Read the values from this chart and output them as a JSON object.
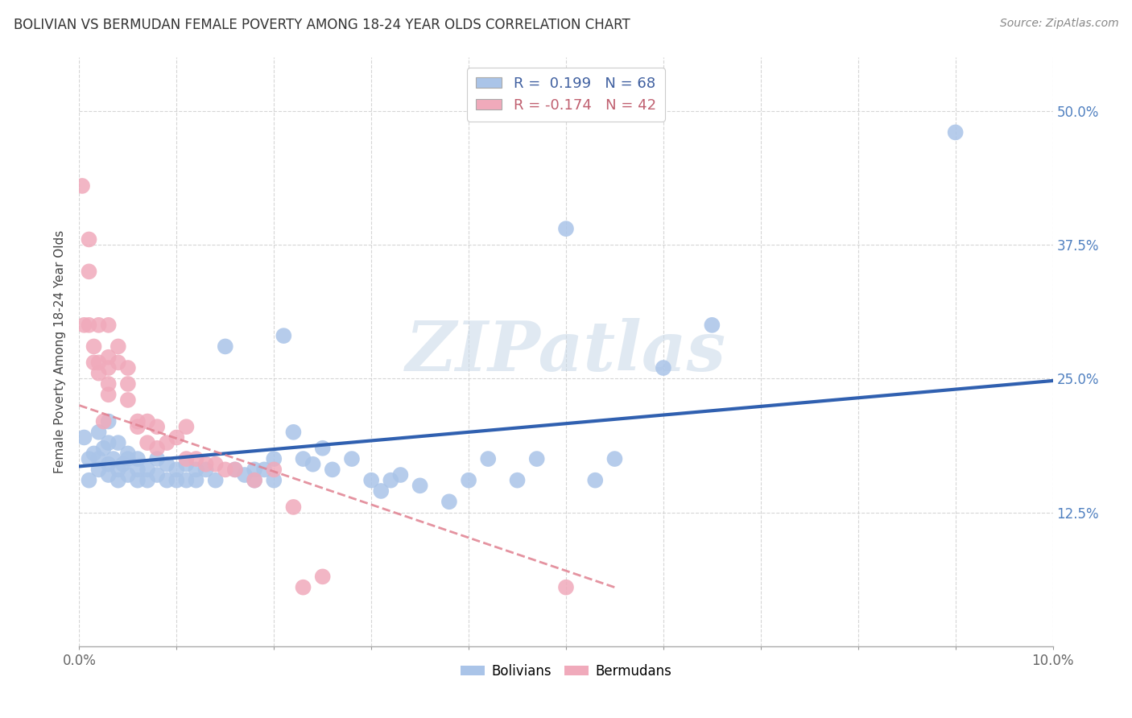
{
  "title": "BOLIVIAN VS BERMUDAN FEMALE POVERTY AMONG 18-24 YEAR OLDS CORRELATION CHART",
  "source": "Source: ZipAtlas.com",
  "ylabel": "Female Poverty Among 18-24 Year Olds",
  "xlim": [
    0.0,
    0.1
  ],
  "ylim": [
    0.0,
    0.55
  ],
  "yticks": [
    0.125,
    0.25,
    0.375,
    0.5
  ],
  "ytick_labels": [
    "12.5%",
    "25.0%",
    "37.5%",
    "50.0%"
  ],
  "xticks": [
    0.0,
    0.01,
    0.02,
    0.03,
    0.04,
    0.05,
    0.06,
    0.07,
    0.08,
    0.09,
    0.1
  ],
  "xtick_labels": [
    "0.0%",
    "",
    "",
    "",
    "",
    "",
    "",
    "",
    "",
    "",
    "10.0%"
  ],
  "blue_color": "#aac4e8",
  "pink_color": "#f0aabb",
  "blue_line_color": "#3060b0",
  "pink_line_color": "#e08090",
  "watermark": "ZIPatlas",
  "blue_legend": "R =  0.199   N = 68",
  "pink_legend": "R = -0.174   N = 42",
  "bottom_blue": "Bolivians",
  "bottom_pink": "Bermudans",
  "blue_x": [
    0.0005,
    0.001,
    0.001,
    0.0015,
    0.002,
    0.002,
    0.002,
    0.0025,
    0.003,
    0.003,
    0.003,
    0.003,
    0.0035,
    0.004,
    0.004,
    0.004,
    0.0045,
    0.005,
    0.005,
    0.005,
    0.006,
    0.006,
    0.006,
    0.007,
    0.007,
    0.008,
    0.008,
    0.009,
    0.009,
    0.01,
    0.01,
    0.011,
    0.011,
    0.012,
    0.012,
    0.013,
    0.014,
    0.015,
    0.016,
    0.017,
    0.018,
    0.018,
    0.019,
    0.02,
    0.02,
    0.021,
    0.022,
    0.023,
    0.024,
    0.025,
    0.026,
    0.028,
    0.03,
    0.031,
    0.032,
    0.033,
    0.035,
    0.038,
    0.04,
    0.042,
    0.045,
    0.047,
    0.05,
    0.053,
    0.055,
    0.06,
    0.065,
    0.09
  ],
  "blue_y": [
    0.195,
    0.175,
    0.155,
    0.18,
    0.175,
    0.2,
    0.165,
    0.185,
    0.21,
    0.19,
    0.17,
    0.16,
    0.175,
    0.19,
    0.165,
    0.155,
    0.17,
    0.175,
    0.16,
    0.18,
    0.165,
    0.175,
    0.155,
    0.165,
    0.155,
    0.175,
    0.16,
    0.17,
    0.155,
    0.165,
    0.155,
    0.17,
    0.155,
    0.165,
    0.155,
    0.165,
    0.155,
    0.28,
    0.165,
    0.16,
    0.165,
    0.155,
    0.165,
    0.175,
    0.155,
    0.29,
    0.2,
    0.175,
    0.17,
    0.185,
    0.165,
    0.175,
    0.155,
    0.145,
    0.155,
    0.16,
    0.15,
    0.135,
    0.155,
    0.175,
    0.155,
    0.175,
    0.39,
    0.155,
    0.175,
    0.26,
    0.3,
    0.48
  ],
  "pink_x": [
    0.0003,
    0.0005,
    0.001,
    0.001,
    0.001,
    0.0015,
    0.0015,
    0.002,
    0.002,
    0.002,
    0.0025,
    0.003,
    0.003,
    0.003,
    0.003,
    0.003,
    0.004,
    0.004,
    0.005,
    0.005,
    0.005,
    0.006,
    0.006,
    0.007,
    0.007,
    0.008,
    0.008,
    0.009,
    0.01,
    0.011,
    0.011,
    0.012,
    0.013,
    0.014,
    0.015,
    0.016,
    0.018,
    0.02,
    0.022,
    0.023,
    0.025,
    0.05
  ],
  "pink_y": [
    0.43,
    0.3,
    0.3,
    0.35,
    0.38,
    0.28,
    0.265,
    0.3,
    0.255,
    0.265,
    0.21,
    0.27,
    0.3,
    0.26,
    0.245,
    0.235,
    0.28,
    0.265,
    0.245,
    0.23,
    0.26,
    0.205,
    0.21,
    0.21,
    0.19,
    0.205,
    0.185,
    0.19,
    0.195,
    0.205,
    0.175,
    0.175,
    0.17,
    0.17,
    0.165,
    0.165,
    0.155,
    0.165,
    0.13,
    0.055,
    0.065,
    0.055
  ],
  "blue_trend_x": [
    0.0,
    0.1
  ],
  "blue_trend_y": [
    0.168,
    0.248
  ],
  "pink_trend_x": [
    0.0,
    0.055
  ],
  "pink_trend_y": [
    0.225,
    0.055
  ]
}
